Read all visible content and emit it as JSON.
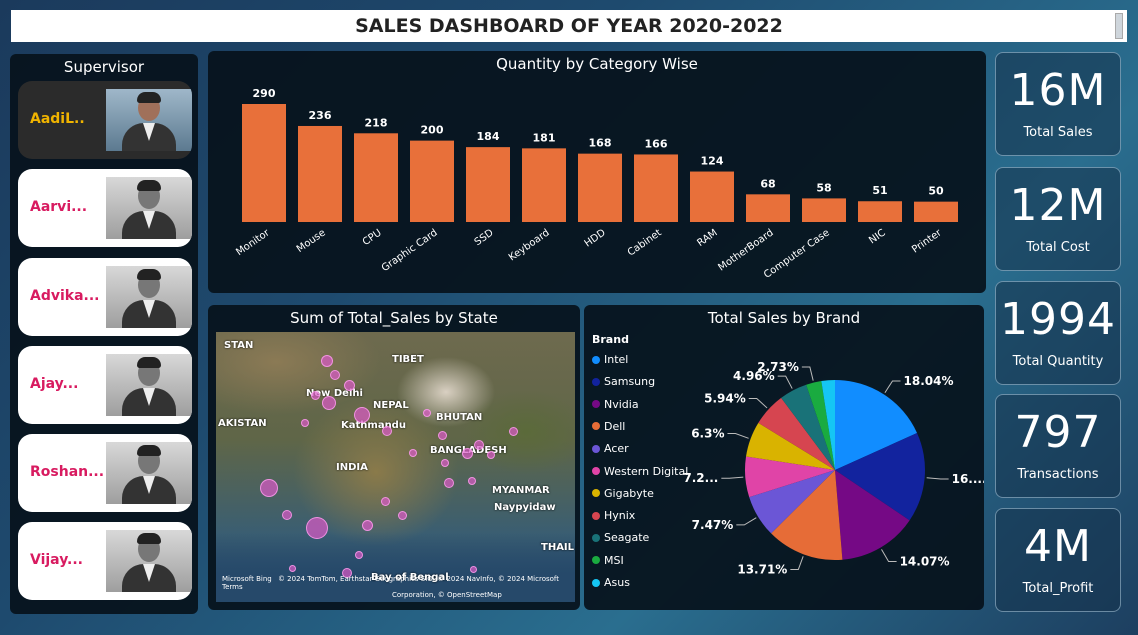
{
  "title": "SALES DASHBOARD OF YEAR 2020-2022",
  "supervisor": {
    "title": "Supervisor",
    "items": [
      {
        "name": "AadiL..",
        "active": true
      },
      {
        "name": "Aarvi..."
      },
      {
        "name": "Advika..."
      },
      {
        "name": "Ajay..."
      },
      {
        "name": "Roshan..."
      },
      {
        "name": "Vijay..."
      }
    ]
  },
  "kpis": [
    {
      "value": "16M",
      "label": "Total Sales"
    },
    {
      "value": "12M",
      "label": "Total Cost"
    },
    {
      "value": "1994",
      "label": "Total Quantity"
    },
    {
      "value": "797",
      "label": "Transactions"
    },
    {
      "value": "4M",
      "label": "Total_Profit"
    }
  ],
  "map": {
    "title": "Sum of Total_Sales by State",
    "labels": [
      "STAN",
      "AKISTAN",
      "New Delhi",
      "NEPAL",
      "Kathmandu",
      "TIBET",
      "BHUTAN",
      "BANGLADESH",
      "INDIA",
      "MYANMAR",
      "Naypyidaw",
      "Bay of Bengal",
      "THAIL"
    ],
    "attribution": "© 2024 TomTom, Earthstar Geographics SIO, © 2024 NavInfo, © 2024 Microsoft  Terms",
    "attribution2": "Corporation, © OpenStreetMap",
    "logo": "Microsoft Bing"
  },
  "chart_data": [
    {
      "type": "bar",
      "title": "Quantity by Category Wise",
      "categories": [
        "Monitor",
        "Mouse",
        "CPU",
        "Graphic Card",
        "SSD",
        "Keyboard",
        "HDD",
        "Cabinet",
        "RAM",
        "MotherBoard",
        "Computer Case",
        "NIC",
        "Printer"
      ],
      "values": [
        290,
        236,
        218,
        200,
        184,
        181,
        168,
        166,
        124,
        68,
        58,
        51,
        50
      ],
      "data_labels": [
        "290",
        "236",
        "218",
        "200",
        "184",
        "181",
        "168",
        "166",
        "124",
        "68",
        "58",
        "51",
        "50"
      ],
      "color": "#e8703a",
      "ylim": [
        0,
        290
      ]
    },
    {
      "type": "pie",
      "title": "Total Sales by Brand",
      "legend_title": "Brand",
      "categories": [
        "Intel",
        "Samsung",
        "Nvidia",
        "Dell",
        "Acer",
        "Western Digital",
        "Gigabyte",
        "Hynix",
        "Seagate",
        "MSI",
        "Asus"
      ],
      "values": [
        18.04,
        16.0,
        14.07,
        13.71,
        7.47,
        7.2,
        6.3,
        5.94,
        4.96,
        2.73,
        2.4
      ],
      "data_labels": [
        "18.04%",
        "16....",
        "14.07%",
        "13.71%",
        "7.47%",
        "7.2...",
        "6.3%",
        "5.94%",
        "4.96%",
        "2.73%",
        ""
      ],
      "colors": [
        "#118dff",
        "#12239e",
        "#750985",
        "#e66c37",
        "#6b56d6",
        "#e044a7",
        "#d9b300",
        "#d64550",
        "#197278",
        "#1aab40",
        "#15c6f4"
      ],
      "legend_placement": "left"
    }
  ]
}
